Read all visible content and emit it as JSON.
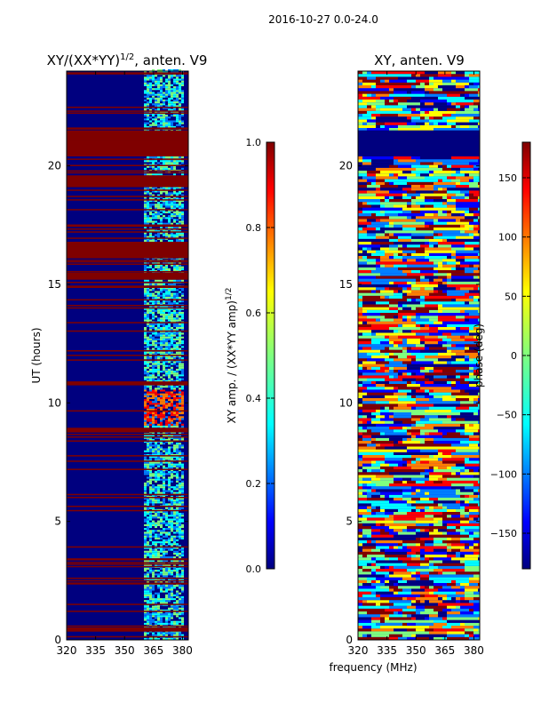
{
  "suptitle": "2016-10-27 0.0-24.0",
  "xlabel": "frequency (MHz)",
  "colors": {
    "jet": [
      "#00007f",
      "#0000ff",
      "#007fff",
      "#00ffff",
      "#7fff7f",
      "#ffff00",
      "#ff7f00",
      "#ff0000",
      "#7f0000"
    ]
  },
  "chart_data": [
    {
      "type": "heatmap",
      "title": "XY/(XX*YY)",
      "title_sup": "1/2",
      "title_suffix": ", anten. V9",
      "ylabel": "UT (hours)",
      "xlim": [
        320,
        383
      ],
      "ylim": [
        0,
        24
      ],
      "xticks": [
        320,
        335,
        350,
        365,
        380
      ],
      "yticks": [
        0,
        5,
        10,
        15,
        20
      ],
      "colorbar": {
        "label": "XY amp. / (XX*YY amp)",
        "label_sup": "1/2",
        "range": [
          0.0,
          1.0
        ],
        "ticks": [
          "0.0",
          "0.2",
          "0.4",
          "0.6",
          "0.8",
          "1.0"
        ],
        "tick_values": [
          0.0,
          0.2,
          0.4,
          0.6,
          0.8,
          1.0
        ]
      },
      "saturated_rows_hours": [
        [
          20.4,
          21.5
        ],
        [
          16.1,
          16.8
        ],
        [
          15.2,
          15.5
        ],
        [
          19.1,
          19.6
        ],
        [
          8.75,
          8.95
        ],
        [
          0.35,
          0.5
        ]
      ],
      "active_band_mhz": [
        360,
        380
      ],
      "peak_hours": [
        9.0,
        10.5
      ]
    },
    {
      "type": "heatmap",
      "title": "XY, anten. V9",
      "xlim": [
        320,
        383
      ],
      "ylim": [
        0,
        24
      ],
      "xticks": [
        320,
        335,
        350,
        365,
        380
      ],
      "yticks": [
        0,
        5,
        10,
        15,
        20
      ],
      "colorbar": {
        "label": "phase (deg)",
        "range": [
          -180,
          180
        ],
        "ticks": [
          "−150",
          "−100",
          "−50",
          "0",
          "50",
          "100",
          "150"
        ],
        "tick_values": [
          -150,
          -100,
          -50,
          0,
          50,
          100,
          150
        ]
      },
      "flagged_rows_hours": [
        [
          20.4,
          21.5
        ]
      ]
    }
  ]
}
